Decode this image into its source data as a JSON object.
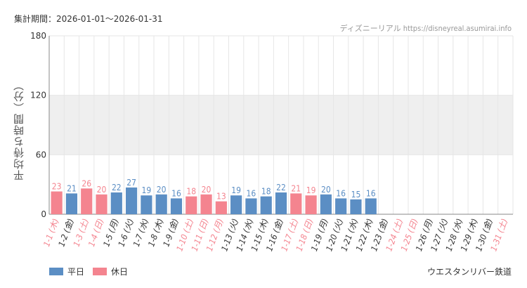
{
  "header": {
    "period": "集計期間：2026-01-01〜2026-01-31",
    "source": "ディズニーリアル https://disneyreal.asumirai.info"
  },
  "footer": {
    "railway": "ウエスタンリバー鉄道"
  },
  "colors": {
    "weekday": "#5b8ec4",
    "holiday": "#f4848f",
    "weekday_label": "#333333",
    "holiday_label": "#f4848f",
    "band": "#efefef",
    "grid": "#e6e6e6"
  },
  "chart_data": {
    "type": "bar",
    "ylabel": "平均待ち時間（分）",
    "ylim": [
      0,
      180
    ],
    "yticks": [
      0,
      60,
      120,
      180
    ],
    "shaded_band": [
      60,
      120
    ],
    "legend": [
      {
        "name": "平日",
        "color": "#5b8ec4"
      },
      {
        "name": "休日",
        "color": "#f4848f"
      }
    ],
    "categories": [
      "1-1 (木)",
      "1-2 (金)",
      "1-3 (土)",
      "1-4 (日)",
      "1-5 (月)",
      "1-6 (火)",
      "1-7 (水)",
      "1-8 (木)",
      "1-9 (金)",
      "1-10 (土)",
      "1-11 (日)",
      "1-12 (月)",
      "1-13 (火)",
      "1-14 (水)",
      "1-15 (木)",
      "1-16 (金)",
      "1-17 (土)",
      "1-18 (日)",
      "1-19 (月)",
      "1-20 (火)",
      "1-21 (水)",
      "1-22 (木)",
      "1-23 (金)",
      "1-24 (土)",
      "1-25 (日)",
      "1-26 (月)",
      "1-27 (火)",
      "1-28 (水)",
      "1-29 (木)",
      "1-30 (金)",
      "1-31 (土)"
    ],
    "values": [
      23,
      21,
      26,
      20,
      22,
      27,
      19,
      20,
      16,
      18,
      20,
      13,
      19,
      16,
      18,
      22,
      21,
      19,
      20,
      16,
      15,
      16,
      null,
      null,
      null,
      null,
      null,
      null,
      null,
      null,
      null
    ],
    "day_type": [
      "holiday",
      "weekday",
      "holiday",
      "holiday",
      "weekday",
      "weekday",
      "weekday",
      "weekday",
      "weekday",
      "holiday",
      "holiday",
      "holiday",
      "weekday",
      "weekday",
      "weekday",
      "weekday",
      "holiday",
      "holiday",
      "weekday",
      "weekday",
      "weekday",
      "weekday",
      "weekday",
      "holiday",
      "holiday",
      "weekday",
      "weekday",
      "weekday",
      "weekday",
      "weekday",
      "holiday"
    ]
  }
}
